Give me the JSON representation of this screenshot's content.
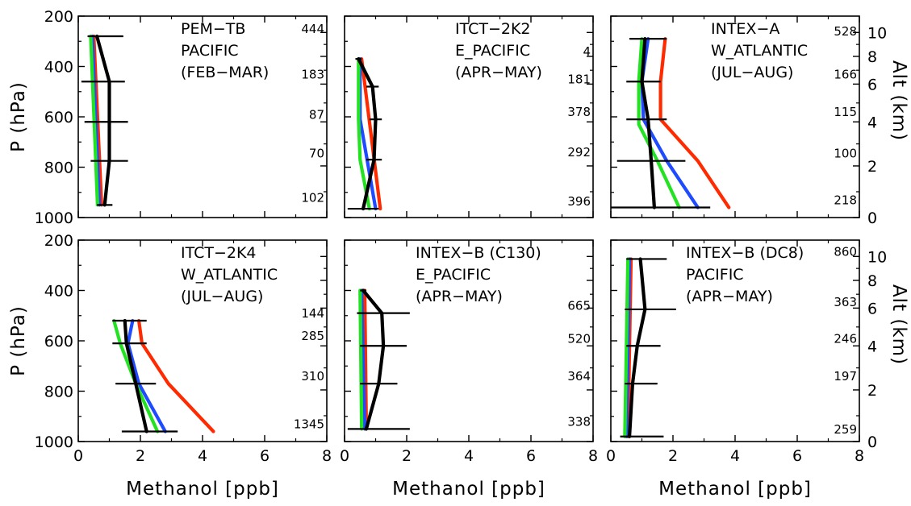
{
  "colors": {
    "ISAF": "#000000",
    "NAS": "#ff2a00",
    "ATS": "#1e4bff",
    "Model4": "#22e222"
  },
  "chart_data": {
    "type": "line",
    "grid": false,
    "layout": "2x3 panels",
    "x_axis": {
      "label": "Methanol [ppb]",
      "range": [
        0,
        8
      ],
      "ticks": [
        "0",
        "2",
        "4",
        "6",
        "8"
      ]
    },
    "y_axis_left": {
      "label": "P (hPa)",
      "range": [
        1000,
        200
      ],
      "ticks": [
        "200",
        "400",
        "600",
        "800",
        "1000"
      ]
    },
    "y_axis_right": {
      "label": "Alt (km)",
      "ticks": [
        "0",
        "2",
        "4",
        "6",
        "8",
        "10"
      ]
    },
    "panels": [
      {
        "title": [
          "PEM−TB",
          "PACIFIC",
          "(FEB−MAR)"
        ],
        "counts": [
          {
            "p": 280,
            "text": "444"
          },
          {
            "p": 460,
            "text": "183"
          },
          {
            "p": 620,
            "text": "87"
          },
          {
            "p": 775,
            "text": "70"
          },
          {
            "p": 950,
            "text": "102"
          }
        ],
        "obs": {
          "p": [
            280,
            460,
            620,
            775,
            950
          ],
          "mean": [
            0.6,
            1.0,
            1.0,
            1.0,
            0.85
          ],
          "low": [
            0.3,
            0.1,
            0.2,
            0.4,
            0.6
          ],
          "high": [
            1.45,
            1.5,
            1.6,
            1.6,
            1.1
          ]
        },
        "series": [
          {
            "color_key": "NAS",
            "p": [
              280,
              950
            ],
            "values": [
              0.5,
              0.75
            ]
          },
          {
            "color_key": "ATS",
            "p": [
              280,
              950
            ],
            "values": [
              0.45,
              0.68
            ]
          },
          {
            "color_key": "Model4",
            "p": [
              280,
              950
            ],
            "values": [
              0.4,
              0.62
            ]
          }
        ]
      },
      {
        "title": [
          "ITCT−2K2",
          "E_PACIFIC",
          "(APR−MAY)"
        ],
        "counts": [
          {
            "p": 370,
            "text": "4"
          },
          {
            "p": 480,
            "text": "181"
          },
          {
            "p": 610,
            "text": "378"
          },
          {
            "p": 770,
            "text": "292"
          },
          {
            "p": 965,
            "text": "396"
          }
        ],
        "obs": {
          "p": [
            370,
            480,
            610,
            770,
            965
          ],
          "mean": [
            0.45,
            0.9,
            1.0,
            0.95,
            0.6
          ],
          "low": [
            0.35,
            0.7,
            0.8,
            0.7,
            0.1
          ],
          "high": [
            0.55,
            1.1,
            1.2,
            1.2,
            1.1
          ]
        },
        "series": [
          {
            "color_key": "NAS",
            "p": [
              370,
              965
            ],
            "values": [
              0.55,
              1.15
            ]
          },
          {
            "color_key": "ATS",
            "p": [
              370,
              610,
              965
            ],
            "values": [
              0.5,
              0.5,
              1.0
            ]
          },
          {
            "color_key": "Model4",
            "p": [
              370,
              610,
              770,
              965
            ],
            "values": [
              0.45,
              0.45,
              0.5,
              0.8
            ]
          }
        ]
      },
      {
        "title": [
          "INTEX−A",
          "W_ATLANTIC",
          "(JUL−AUG)"
        ],
        "counts": [
          {
            "p": 290,
            "text": "528"
          },
          {
            "p": 460,
            "text": "166"
          },
          {
            "p": 610,
            "text": "115"
          },
          {
            "p": 775,
            "text": "100"
          },
          {
            "p": 960,
            "text": "218"
          }
        ],
        "obs": {
          "p": [
            290,
            460,
            610,
            775,
            960
          ],
          "mean": [
            1.1,
            1.0,
            1.2,
            1.3,
            1.4
          ],
          "low": [
            0.6,
            0.5,
            0.5,
            0.2,
            0.0
          ],
          "high": [
            1.8,
            1.6,
            1.8,
            2.4,
            3.2
          ]
        },
        "series": [
          {
            "color_key": "NAS",
            "p": [
              290,
              460,
              610,
              775,
              960
            ],
            "values": [
              1.75,
              1.6,
              1.6,
              2.8,
              3.8
            ]
          },
          {
            "color_key": "ATS",
            "p": [
              290,
              460,
              610,
              775,
              960
            ],
            "values": [
              1.2,
              1.0,
              1.05,
              1.8,
              2.8
            ]
          },
          {
            "color_key": "Model4",
            "p": [
              290,
              460,
              630,
              775,
              960
            ],
            "values": [
              1.0,
              0.9,
              0.9,
              1.5,
              2.2
            ]
          }
        ]
      },
      {
        "title": [
          "ITCT−2K4",
          "W_ATLANTIC",
          "(JUL−AUG)"
        ],
        "counts": [
          {
            "p": 520,
            "text": "144"
          },
          {
            "p": 610,
            "text": "285"
          },
          {
            "p": 770,
            "text": "310"
          },
          {
            "p": 960,
            "text": "1345"
          }
        ],
        "obs": {
          "p": [
            520,
            610,
            770,
            960
          ],
          "mean": [
            1.5,
            1.55,
            1.85,
            2.2
          ],
          "low": [
            1.1,
            1.1,
            1.2,
            1.4
          ],
          "high": [
            2.2,
            2.2,
            2.5,
            3.2
          ]
        },
        "series": [
          {
            "color_key": "NAS",
            "p": [
              520,
              610,
              770,
              960
            ],
            "values": [
              1.95,
              2.05,
              2.9,
              4.35
            ]
          },
          {
            "color_key": "ATS",
            "p": [
              520,
              610,
              770,
              960
            ],
            "values": [
              1.75,
              1.6,
              1.95,
              2.8
            ]
          },
          {
            "color_key": "Model4",
            "p": [
              520,
              610,
              770,
              960
            ],
            "values": [
              1.15,
              1.35,
              1.85,
              2.55
            ]
          }
        ]
      },
      {
        "title": [
          "INTEX−B (C130)",
          "E_PACIFIC",
          "(APR−MAY)"
        ],
        "counts": [
          {
            "p": 490,
            "text": "665"
          },
          {
            "p": 620,
            "text": "520"
          },
          {
            "p": 770,
            "text": "364"
          },
          {
            "p": 950,
            "text": "338"
          }
        ],
        "obs": {
          "p": [
            400,
            490,
            620,
            770,
            950
          ],
          "mean": [
            0.6,
            1.2,
            1.25,
            1.1,
            0.7
          ],
          "low": [
            0.5,
            0.4,
            0.5,
            0.5,
            0.1
          ],
          "high": [
            0.7,
            2.1,
            2.0,
            1.7,
            2.1
          ]
        },
        "series": [
          {
            "color_key": "NAS",
            "p": [
              400,
              950
            ],
            "values": [
              0.65,
              0.7
            ]
          },
          {
            "color_key": "ATS",
            "p": [
              400,
              950
            ],
            "values": [
              0.55,
              0.65
            ]
          },
          {
            "color_key": "Model4",
            "p": [
              400,
              950
            ],
            "values": [
              0.5,
              0.55
            ]
          }
        ]
      },
      {
        "title": [
          "INTEX−B (DC8)",
          "PACIFIC",
          "(APR−MAY)"
        ],
        "counts": [
          {
            "p": 275,
            "text": "860"
          },
          {
            "p": 475,
            "text": "363"
          },
          {
            "p": 620,
            "text": "246"
          },
          {
            "p": 770,
            "text": "197"
          },
          {
            "p": 980,
            "text": "259"
          }
        ],
        "obs": {
          "p": [
            275,
            475,
            620,
            770,
            980
          ],
          "mean": [
            0.95,
            1.1,
            0.85,
            0.7,
            0.6
          ],
          "low": [
            0.5,
            0.45,
            0.5,
            0.45,
            0.3
          ],
          "high": [
            1.8,
            2.1,
            1.6,
            1.5,
            1.7
          ]
        },
        "series": [
          {
            "color_key": "NAS",
            "p": [
              275,
              980
            ],
            "values": [
              0.65,
              0.55
            ]
          },
          {
            "color_key": "ATS",
            "p": [
              275,
              980
            ],
            "values": [
              0.6,
              0.5
            ]
          },
          {
            "color_key": "Model4",
            "p": [
              275,
              980
            ],
            "values": [
              0.55,
              0.45
            ]
          }
        ]
      }
    ]
  }
}
